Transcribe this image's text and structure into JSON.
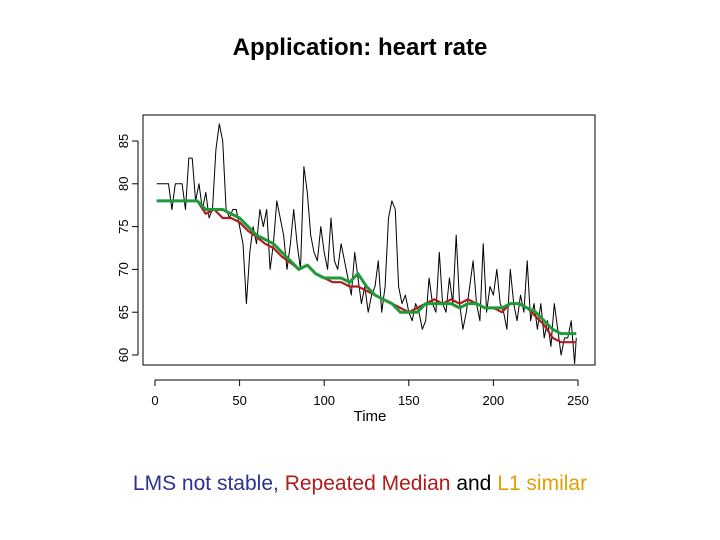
{
  "slide": {
    "title": "Application: heart rate",
    "caption": {
      "lms": "LMS not stable,",
      "rm": "Repeated Median",
      "and": "and",
      "l1": "L1 similar"
    }
  },
  "colors": {
    "raw": "#000000",
    "repeated_median": "#b01c1c",
    "l1": "#1f9a3a",
    "lms_text": "#2e3192",
    "rm_text": "#b01c1c",
    "l1_text": "#e0a100"
  },
  "chart_data": {
    "type": "line",
    "title": "",
    "xlabel": "Time",
    "ylabel": "",
    "xlim": [
      -5,
      252
    ],
    "ylim": [
      58,
      87
    ],
    "xticks": [
      0,
      50,
      100,
      150,
      200,
      250
    ],
    "yticks": [
      60,
      65,
      70,
      75,
      80,
      85
    ],
    "grid": false,
    "series": [
      {
        "key": "raw",
        "x": [
          1,
          4,
          8,
          10,
          12,
          14,
          16,
          18,
          20,
          22,
          24,
          26,
          28,
          30,
          32,
          34,
          36,
          38,
          40,
          42,
          44,
          46,
          48,
          50,
          52,
          54,
          56,
          58,
          60,
          62,
          64,
          66,
          68,
          70,
          72,
          74,
          76,
          78,
          80,
          82,
          84,
          86,
          88,
          90,
          92,
          94,
          96,
          98,
          100,
          102,
          104,
          106,
          108,
          110,
          112,
          114,
          116,
          118,
          120,
          122,
          124,
          126,
          128,
          130,
          132,
          134,
          136,
          138,
          140,
          142,
          144,
          146,
          148,
          150,
          152,
          154,
          156,
          158,
          160,
          162,
          164,
          166,
          168,
          170,
          172,
          174,
          176,
          178,
          180,
          182,
          184,
          186,
          188,
          190,
          192,
          194,
          196,
          198,
          200,
          202,
          204,
          206,
          208,
          210,
          212,
          214,
          216,
          218,
          220,
          222,
          224,
          226,
          228,
          230,
          232,
          234,
          236,
          238,
          240,
          242,
          244,
          246,
          248,
          249
        ],
        "y": [
          80,
          80,
          80,
          77,
          80,
          80,
          80,
          77,
          83,
          83,
          78,
          80,
          77,
          79,
          76,
          77,
          84,
          87,
          85,
          77,
          76,
          77,
          77,
          75,
          73,
          66,
          72,
          75,
          73,
          77,
          75,
          77,
          70,
          73,
          78,
          76,
          74,
          70,
          73,
          77,
          73,
          70,
          82,
          79,
          74,
          72,
          71,
          75,
          72,
          70,
          76,
          71,
          70,
          73,
          71,
          69,
          67,
          72,
          69,
          66,
          68,
          65,
          67,
          68,
          71,
          65,
          68,
          76,
          78,
          77,
          68,
          66,
          67,
          65,
          64,
          66,
          65,
          63,
          64,
          69,
          66,
          65,
          72,
          66,
          65,
          69,
          66,
          74,
          66,
          63,
          65,
          68,
          71,
          66,
          64,
          73,
          65,
          68,
          67,
          70,
          66,
          65,
          63,
          70,
          66,
          64,
          67,
          65,
          71,
          64,
          66,
          63,
          66,
          62,
          64,
          61,
          66,
          63,
          60,
          62,
          62,
          64,
          59,
          62
        ]
      },
      {
        "key": "repeated_median",
        "x": [
          1,
          5,
          10,
          15,
          20,
          25,
          30,
          35,
          40,
          45,
          50,
          55,
          60,
          65,
          70,
          75,
          80,
          85,
          90,
          95,
          100,
          105,
          110,
          115,
          120,
          125,
          130,
          135,
          140,
          145,
          150,
          155,
          160,
          165,
          170,
          175,
          180,
          185,
          190,
          195,
          200,
          205,
          210,
          215,
          220,
          225,
          230,
          235,
          240,
          245,
          249
        ],
        "y": [
          78,
          78,
          78,
          78,
          78,
          78,
          76.5,
          77,
          76,
          76,
          75.5,
          74.5,
          73.8,
          73,
          72.5,
          71.5,
          70.8,
          70,
          70.5,
          69.5,
          69,
          68.5,
          68.5,
          68,
          68,
          67.5,
          67,
          66.5,
          66,
          65.5,
          65,
          65.5,
          66,
          66.5,
          66,
          66.5,
          66,
          66.5,
          66,
          65.5,
          65.5,
          65,
          66,
          66,
          65.5,
          64.5,
          63.5,
          62,
          61.5,
          61.5,
          61.5
        ]
      },
      {
        "key": "l1",
        "x": [
          1,
          5,
          10,
          15,
          20,
          25,
          30,
          35,
          40,
          45,
          50,
          55,
          60,
          65,
          70,
          75,
          80,
          85,
          90,
          95,
          100,
          105,
          110,
          115,
          120,
          125,
          130,
          135,
          140,
          145,
          150,
          155,
          160,
          165,
          170,
          175,
          180,
          185,
          190,
          195,
          200,
          205,
          210,
          215,
          220,
          225,
          230,
          235,
          240,
          245,
          249
        ],
        "y": [
          78,
          78,
          78,
          78,
          78,
          78,
          77,
          77,
          77,
          76.5,
          76,
          75,
          74,
          73.5,
          73,
          72,
          71,
          70,
          70.5,
          69.5,
          69,
          69,
          69,
          68.5,
          69.5,
          68,
          67,
          66.5,
          66,
          65,
          65,
          65,
          66,
          66,
          66,
          66,
          65.5,
          66,
          66,
          65.5,
          65.5,
          65.5,
          66,
          66,
          65.5,
          65,
          64,
          63,
          62.5,
          62.5,
          62.5
        ]
      }
    ]
  }
}
